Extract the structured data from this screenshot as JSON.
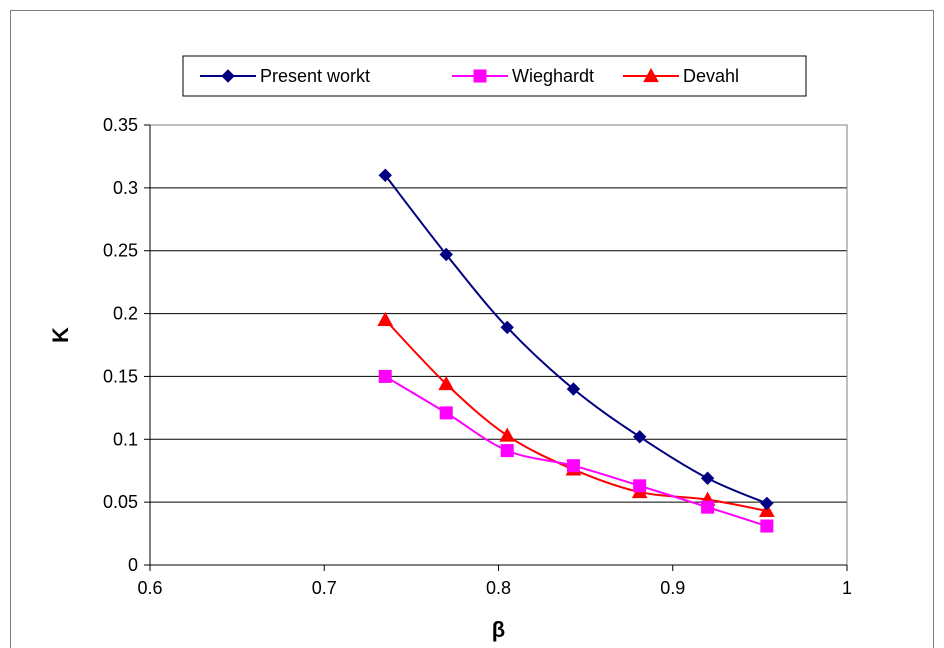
{
  "chart_data": {
    "type": "line",
    "title": "",
    "xlabel": "β",
    "ylabel": "K",
    "xlim": [
      0.6,
      1.0
    ],
    "ylim": [
      0,
      0.35
    ],
    "x_ticks": [
      0.6,
      0.7,
      0.8,
      0.9,
      1.0
    ],
    "x_tick_labels": [
      "0.6",
      "0.7",
      "0.8",
      "0.9",
      "1"
    ],
    "y_ticks": [
      0,
      0.05,
      0.1,
      0.15,
      0.2,
      0.25,
      0.3,
      0.35
    ],
    "y_tick_labels": [
      "0",
      "0.05",
      "0.1",
      "0.15",
      "0.2",
      "0.25",
      "0.3",
      "0.35"
    ],
    "grid": "horizontal",
    "legend_position": "top",
    "series": [
      {
        "name": "Present workt",
        "color": "#000080",
        "marker": "diamond",
        "x": [
          0.735,
          0.77,
          0.805,
          0.843,
          0.881,
          0.92,
          0.954
        ],
        "y": [
          0.31,
          0.247,
          0.189,
          0.14,
          0.102,
          0.069,
          0.049
        ]
      },
      {
        "name": "Wieghardt",
        "color": "#ff00ff",
        "marker": "square",
        "x": [
          0.735,
          0.77,
          0.805,
          0.843,
          0.881,
          0.92,
          0.954
        ],
        "y": [
          0.15,
          0.121,
          0.091,
          0.079,
          0.063,
          0.046,
          0.031
        ]
      },
      {
        "name": "Devahl",
        "color": "#ff0000",
        "marker": "triangle",
        "x": [
          0.735,
          0.77,
          0.805,
          0.843,
          0.881,
          0.92,
          0.954
        ],
        "y": [
          0.195,
          0.144,
          0.103,
          0.076,
          0.058,
          0.052,
          0.043
        ]
      }
    ]
  }
}
